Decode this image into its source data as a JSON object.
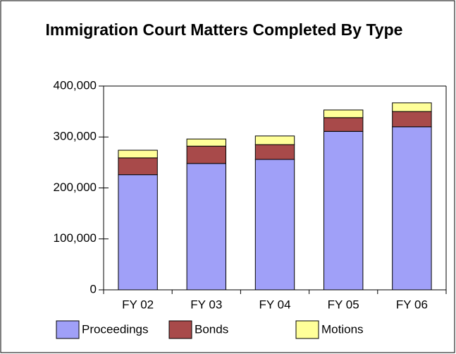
{
  "chart_data": {
    "type": "bar",
    "stacked": true,
    "title": "Immigration Court Matters Completed By Type",
    "categories": [
      "FY 02",
      "FY 03",
      "FY 04",
      "FY 05",
      "FY 06"
    ],
    "series": [
      {
        "name": "Proceedings",
        "color": "#a0a0f8",
        "values": [
          226000,
          248000,
          256000,
          311000,
          320000
        ]
      },
      {
        "name": "Bonds",
        "color": "#a84a4a",
        "values": [
          33000,
          34000,
          29000,
          27000,
          30000
        ]
      },
      {
        "name": "Motions",
        "color": "#ffff99",
        "values": [
          15000,
          14000,
          17000,
          15000,
          17000
        ]
      }
    ],
    "ylim": [
      0,
      400000
    ],
    "yticks": [
      0,
      {
        "value": 100000,
        "label": "100,000"
      },
      {
        "value": 200000,
        "label": "200,000"
      },
      {
        "value": 300000,
        "label": "300,000"
      },
      {
        "value": 400000,
        "label": "400,000"
      }
    ],
    "legend": "bottom"
  }
}
